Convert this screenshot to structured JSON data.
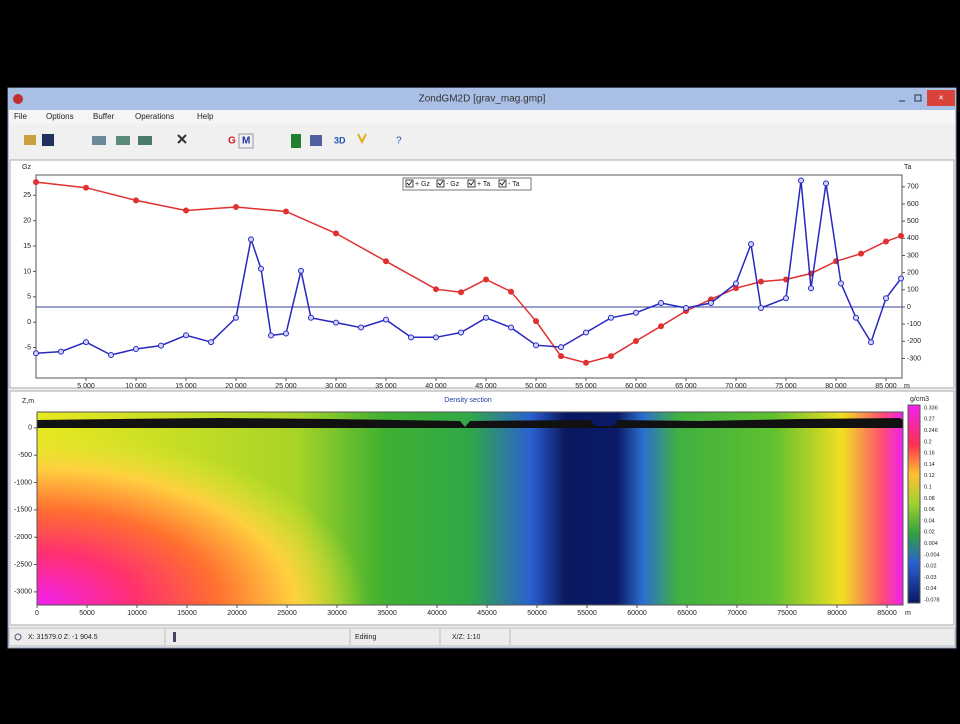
{
  "window": {
    "title": "ZondGM2D [grav_mag.gmp]"
  },
  "menu": [
    "File",
    "Options",
    "Buffer",
    "Operations",
    "Help"
  ],
  "toolbar": {
    "g_button": "G",
    "m_button": "M",
    "three_d_button": "3D"
  },
  "profile_chart": {
    "y_label": "Gz",
    "y2_label": "Ta",
    "x_unit": "m",
    "legend": [
      "+ Gz",
      "- Gz",
      "+ Ta",
      "- Ta"
    ],
    "xlim": [
      0,
      86600
    ],
    "ylim": [
      -11,
      29
    ],
    "y2lim": [
      -414,
      769
    ],
    "xticks": [
      {
        "value": 5000,
        "label": "5 000"
      },
      {
        "value": 10000,
        "label": "10 000"
      },
      {
        "value": 15000,
        "label": "15 000"
      },
      {
        "value": 20000,
        "label": "20 000"
      },
      {
        "value": 25000,
        "label": "25 000"
      },
      {
        "value": 30000,
        "label": "30 000"
      },
      {
        "value": 35000,
        "label": "35 000"
      },
      {
        "value": 40000,
        "label": "40 000"
      },
      {
        "value": 45000,
        "label": "45 000"
      },
      {
        "value": 50000,
        "label": "50 000"
      },
      {
        "value": 55000,
        "label": "55 000"
      },
      {
        "value": 60000,
        "label": "60 000"
      },
      {
        "value": 65000,
        "label": "65 000"
      },
      {
        "value": 70000,
        "label": "70 000"
      },
      {
        "value": 75000,
        "label": "75 000"
      },
      {
        "value": 80000,
        "label": "80 000"
      },
      {
        "value": 85000,
        "label": "85 000"
      }
    ],
    "yticks": [
      -5,
      0,
      5,
      10,
      15,
      20,
      25
    ],
    "y2ticks": [
      -300,
      -200,
      -100,
      0,
      100,
      200,
      300,
      400,
      500,
      600,
      700
    ],
    "series": [
      {
        "color": "#e03030",
        "axis": "y",
        "x": [
          0,
          5000,
          10000,
          15000,
          20000,
          25000,
          30000,
          35000,
          40000,
          42500,
          45000,
          47500,
          50000,
          52500,
          55000,
          57500,
          60000,
          62500,
          65000,
          67500,
          70000,
          72500,
          75000,
          77500,
          80000,
          82500,
          85000,
          86500
        ],
        "values": [
          27.6,
          26.5,
          24,
          22,
          22.7,
          21.8,
          17.5,
          12,
          6.5,
          5.9,
          8.4,
          6,
          0.2,
          -6.7,
          -8,
          -6.7,
          -3.7,
          -0.8,
          2.2,
          4.5,
          6.7,
          8,
          8.4,
          9.6,
          12,
          13.5,
          15.9,
          17
        ]
      },
      {
        "color": "#2828c0",
        "axis": "y2",
        "x": [
          0,
          2500,
          5000,
          7500,
          10000,
          12500,
          15000,
          17500,
          20000,
          21500,
          22500,
          23500,
          25000,
          26500,
          27500,
          30000,
          32500,
          35000,
          37500,
          40000,
          42500,
          45000,
          47500,
          50000,
          52500,
          55000,
          57500,
          60000,
          62500,
          65000,
          67500,
          70000,
          71500,
          72500,
          75000,
          76500,
          77500,
          79000,
          80500,
          82000,
          83500,
          85000,
          86500
        ],
        "values": [
          -270,
          -260,
          -205,
          -280,
          -245,
          -225,
          -165,
          -205,
          -63,
          394,
          223,
          -166,
          -155,
          211,
          -63,
          -91,
          -120,
          -74,
          -177,
          -177,
          -149,
          -63,
          -120,
          -223,
          -234,
          -149,
          -63,
          -34,
          23,
          -6,
          23,
          137,
          366,
          -6,
          51,
          737,
          109,
          720,
          137,
          -63,
          -206,
          51,
          166
        ]
      }
    ]
  },
  "density_section": {
    "title": "Density section",
    "y_label": "Z,m",
    "x_unit": "m",
    "colorbar_unit": "g/cm3",
    "xlim": [
      0,
      86600
    ],
    "ylim": [
      -3240,
      290
    ],
    "xticks": [
      0,
      5000,
      10000,
      15000,
      20000,
      25000,
      30000,
      35000,
      40000,
      45000,
      50000,
      55000,
      60000,
      65000,
      70000,
      75000,
      80000,
      85000
    ],
    "yticks": [
      0,
      -500,
      -1000,
      -1500,
      -2000,
      -2500,
      -3000
    ],
    "colorbar_ticks": [
      "0.336",
      "0.27",
      "0.246",
      "0.2",
      "0.16",
      "0.14",
      "0.12",
      "0.1",
      "0.08",
      "0.06",
      "0.04",
      "0.02",
      "0.004",
      "-0.004",
      "-0.02",
      "-0.03",
      "-0.04",
      "-0.078"
    ]
  },
  "status_bar": [
    "X: 31579.0  Z: -1 904.5",
    "Editing",
    "X/Z: 1:10"
  ]
}
